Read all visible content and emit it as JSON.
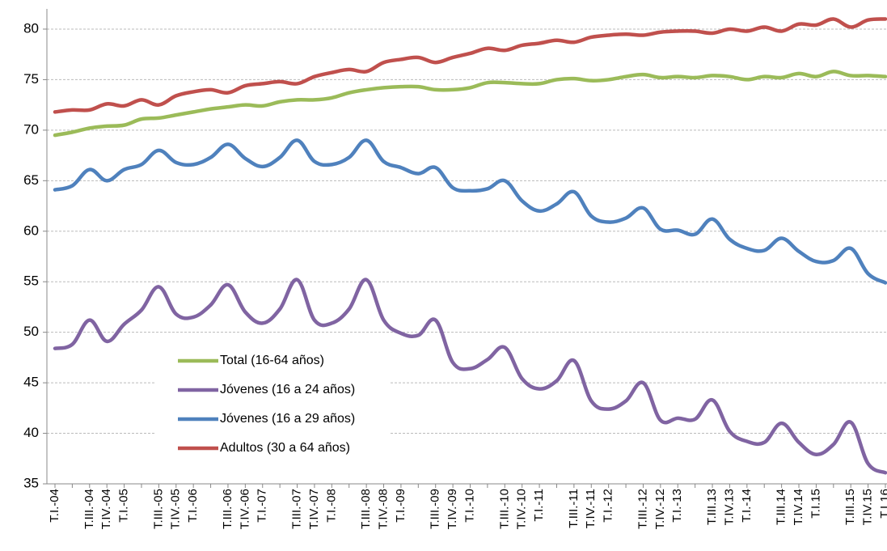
{
  "chart_data": {
    "type": "line",
    "categories": [
      "T.I.-04",
      null,
      "T.III.-04",
      "T.IV.-04",
      "T.I.-05",
      null,
      "T.III.-05",
      "T.IV.-05",
      "T.I.-06",
      null,
      "T.III.-06",
      "T.IV.-06",
      "T.I.-07",
      null,
      "T.III.-07",
      "T.IV.-07",
      "T.I.-08",
      null,
      "T.III.-08",
      "T.IV.-08",
      "T.I.-09",
      null,
      "T.III.-09",
      "T.IV.-09",
      "T.I.-10",
      null,
      "T.III.-10",
      "T.IV.-10",
      "T.I.-11",
      null,
      "T.III.-11",
      "T.IV.-11",
      "T.I.-12",
      null,
      "T.III.-12",
      "T.IV.-12",
      "T.I.-13",
      null,
      "T.III.13",
      "T.IV.13",
      "T.I.-14",
      null,
      "T.III.14",
      "T.IV.14",
      "T.I.15",
      null,
      "T.III.15",
      "T.IV.15",
      "T.I.16"
    ],
    "series": [
      {
        "name": "Total (16-64 años)",
        "color": "#9bbb59",
        "values": [
          69.5,
          69.8,
          70.2,
          70.4,
          70.5,
          71.1,
          71.2,
          71.5,
          71.8,
          72.1,
          72.3,
          72.5,
          72.4,
          72.8,
          73.0,
          73.0,
          73.2,
          73.7,
          74.0,
          74.2,
          74.3,
          74.3,
          74.0,
          74.0,
          74.2,
          74.7,
          74.7,
          74.6,
          74.6,
          75.0,
          75.1,
          74.9,
          75.0,
          75.3,
          75.5,
          75.2,
          75.3,
          75.2,
          75.4,
          75.3,
          75.0,
          75.3,
          75.2,
          75.6,
          75.3,
          75.8,
          75.4,
          75.4,
          75.3
        ]
      },
      {
        "name": "Jóvenes (16 a 24 años)",
        "color": "#8064a2",
        "values": [
          48.4,
          48.8,
          51.2,
          49.1,
          50.8,
          52.2,
          54.5,
          51.8,
          51.5,
          52.7,
          54.7,
          52.0,
          50.9,
          52.3,
          55.2,
          51.2,
          50.9,
          52.3,
          55.2,
          51.2,
          49.9,
          49.7,
          51.2,
          47.0,
          46.4,
          47.3,
          48.5,
          45.4,
          44.4,
          45.2,
          47.2,
          43.2,
          42.4,
          43.2,
          45.0,
          41.3,
          41.5,
          41.4,
          43.3,
          40.2,
          39.2,
          39.1,
          41.0,
          39.1,
          37.9,
          38.9,
          41.1,
          37.0,
          36.1
        ]
      },
      {
        "name": "Jóvenes (16 a 29 años)",
        "color": "#4f81bd",
        "values": [
          64.1,
          64.5,
          66.1,
          65.0,
          66.1,
          66.6,
          68.0,
          66.8,
          66.6,
          67.3,
          68.6,
          67.2,
          66.4,
          67.3,
          69.0,
          66.9,
          66.6,
          67.3,
          69.0,
          66.9,
          66.3,
          65.7,
          66.3,
          64.3,
          64.0,
          64.2,
          65.0,
          63.0,
          62.0,
          62.7,
          63.9,
          61.5,
          60.9,
          61.3,
          62.3,
          60.2,
          60.1,
          59.7,
          61.2,
          59.2,
          58.3,
          58.1,
          59.3,
          58.0,
          57.0,
          57.1,
          58.3,
          55.8,
          54.9
        ]
      },
      {
        "name": "Adultos (30 a 64 años)",
        "color": "#c0504d",
        "values": [
          71.8,
          72.0,
          72.0,
          72.6,
          72.4,
          73.0,
          72.5,
          73.4,
          73.8,
          74.0,
          73.7,
          74.4,
          74.6,
          74.8,
          74.6,
          75.3,
          75.7,
          76.0,
          75.8,
          76.7,
          77.0,
          77.2,
          76.7,
          77.2,
          77.6,
          78.1,
          77.9,
          78.4,
          78.6,
          78.9,
          78.7,
          79.2,
          79.4,
          79.5,
          79.4,
          79.7,
          79.8,
          79.8,
          79.6,
          80.0,
          79.8,
          80.2,
          79.8,
          80.5,
          80.4,
          81.0,
          80.2,
          80.9,
          81.0
        ]
      }
    ],
    "ylim": [
      35,
      82
    ],
    "yticks": [
      35,
      40,
      45,
      50,
      55,
      60,
      65,
      70,
      75,
      80
    ],
    "grid": true,
    "legend": "lower-left"
  }
}
